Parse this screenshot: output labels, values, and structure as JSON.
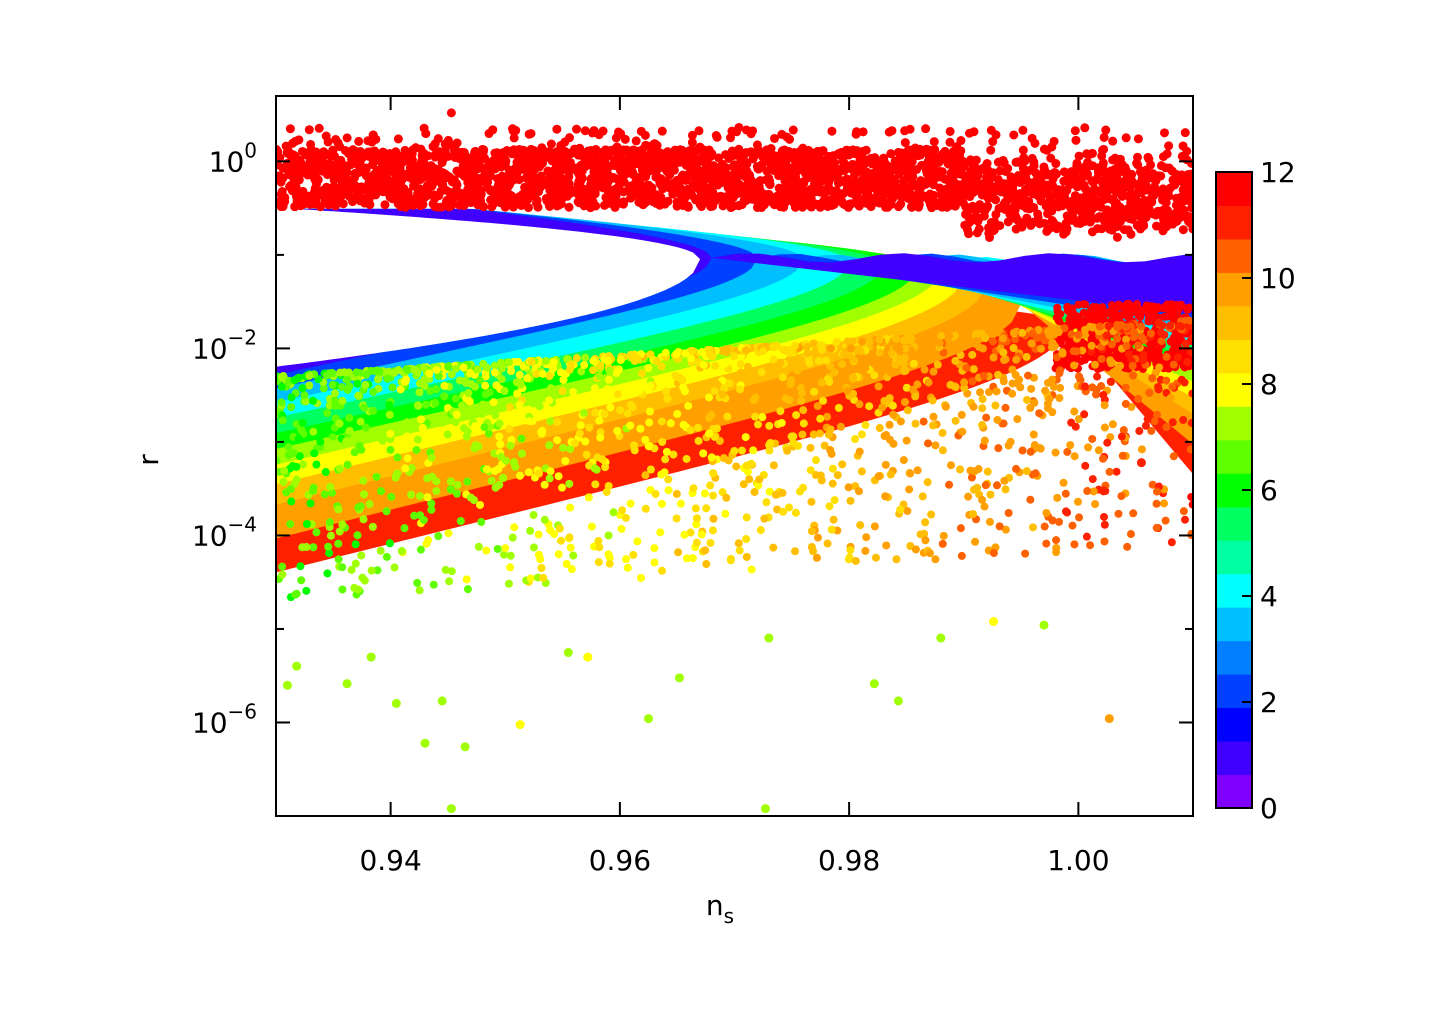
{
  "chart_data": {
    "type": "scatter",
    "title": "",
    "xlabel_main": "n",
    "xlabel_sub": "s",
    "ylabel": "r",
    "xlim": [
      0.93,
      1.01
    ],
    "ylim": [
      1e-07,
      5
    ],
    "yscale": "log",
    "x_ticks": [
      {
        "value": 0.94,
        "label": "0.94"
      },
      {
        "value": 0.96,
        "label": "0.96"
      },
      {
        "value": 0.98,
        "label": "0.98"
      },
      {
        "value": 1.0,
        "label": "1.00"
      }
    ],
    "y_ticks": [
      {
        "value": 1,
        "base": "10",
        "exp": "0"
      },
      {
        "value": 0.01,
        "base": "10",
        "exp": "−2"
      },
      {
        "value": 0.0001,
        "base": "10",
        "exp": "−4"
      },
      {
        "value": 1e-06,
        "base": "10",
        "exp": "−6"
      }
    ],
    "y_minor_ticks": [
      10,
      0.1,
      0.001,
      1e-05
    ],
    "colorbar": {
      "min": 0,
      "max": 12,
      "ticks": [
        "0",
        "2",
        "4",
        "6",
        "8",
        "10",
        "12"
      ],
      "colors": [
        "#7f00ff",
        "#3f00ff",
        "#0000ff",
        "#0040ff",
        "#0080ff",
        "#00bfff",
        "#00ffff",
        "#00ffa0",
        "#00ff60",
        "#00ff00",
        "#60ff00",
        "#a0ff00",
        "#ffff00",
        "#ffdf00",
        "#ffbf00",
        "#ff9f00",
        "#ff6000",
        "#ff2000",
        "#ff0000"
      ]
    },
    "bands": [
      {
        "level": 12,
        "color": "#ff1a00",
        "ns_upper": [
          [
            0.93,
            0.32
          ],
          [
            0.96,
            0.3
          ],
          [
            0.99,
            0.25
          ],
          [
            1.01,
            0.2
          ]
        ],
        "r_upper": [
          [
            0.93,
            1.0
          ],
          [
            1.01,
            1.0
          ]
        ]
      },
      {
        "level": 0.5,
        "color": "#8000ff",
        "curve": [
          [
            0.945,
            0.28
          ],
          [
            0.955,
            0.25
          ],
          [
            0.962,
            0.19
          ],
          [
            0.967,
            0.11
          ],
          [
            0.97,
            0.085
          ],
          [
            0.972,
            0.07
          ]
        ]
      },
      {
        "level": 2,
        "color": "#1a1aff",
        "curve": [
          [
            0.93,
            0.0065
          ],
          [
            0.95,
            0.015
          ],
          [
            0.965,
            0.03
          ],
          [
            0.98,
            0.06
          ],
          [
            0.988,
            0.09
          ]
        ]
      },
      {
        "level": 4,
        "color": "#00d0ff",
        "curve": [
          [
            0.93,
            0.003
          ],
          [
            0.95,
            0.0075
          ],
          [
            0.97,
            0.02
          ],
          [
            0.99,
            0.07
          ]
        ]
      },
      {
        "level": 6,
        "color": "#00ff80",
        "curve": [
          [
            0.93,
            0.0015
          ],
          [
            0.95,
            0.004
          ],
          [
            0.97,
            0.012
          ],
          [
            1.01,
            0.05
          ]
        ]
      },
      {
        "level": 8,
        "color": "#40ff00",
        "curve": [
          [
            0.93,
            0.0008
          ],
          [
            0.96,
            0.003
          ],
          [
            0.98,
            0.008
          ],
          [
            1.01,
            0.03
          ]
        ]
      },
      {
        "level": 10,
        "color": "#e6ff00",
        "curve": [
          [
            0.98,
            0.01
          ],
          [
            1.0,
            0.008
          ],
          [
            1.01,
            0.015
          ]
        ]
      }
    ],
    "sparse_points": [
      {
        "x": 0.9453,
        "y": 3.3,
        "level": 12
      },
      {
        "x": 0.932,
        "y": 1.7,
        "level": 12
      },
      {
        "x": 0.9905,
        "y": 2.0,
        "level": 12
      },
      {
        "x": 0.9785,
        "y": 2.1,
        "level": 12
      },
      {
        "x": 0.9453,
        "y": 1.2e-07,
        "level": 7
      },
      {
        "x": 0.9727,
        "y": 1.2e-07,
        "level": 7
      },
      {
        "x": 0.9465,
        "y": 5.5e-07,
        "level": 7
      },
      {
        "x": 0.943,
        "y": 6e-07,
        "level": 7
      },
      {
        "x": 1.0027,
        "y": 1.1e-06,
        "level": 10
      },
      {
        "x": 0.9405,
        "y": 1.6e-06,
        "level": 7
      },
      {
        "x": 0.9445,
        "y": 1.7e-06,
        "level": 7
      },
      {
        "x": 0.9625,
        "y": 1.1e-06,
        "level": 7
      },
      {
        "x": 0.9513,
        "y": 9.5e-07,
        "level": 8
      },
      {
        "x": 0.9843,
        "y": 1.7e-06,
        "level": 7
      },
      {
        "x": 0.9822,
        "y": 2.6e-06,
        "level": 7
      },
      {
        "x": 0.9652,
        "y": 3e-06,
        "level": 7
      },
      {
        "x": 0.973,
        "y": 8e-06,
        "level": 7
      },
      {
        "x": 0.988,
        "y": 8e-06,
        "level": 7
      },
      {
        "x": 0.997,
        "y": 1.1e-05,
        "level": 7
      },
      {
        "x": 0.9926,
        "y": 1.2e-05,
        "level": 8
      },
      {
        "x": 0.9572,
        "y": 5e-06,
        "level": 8
      },
      {
        "x": 0.9555,
        "y": 5.6e-06,
        "level": 7
      },
      {
        "x": 0.9383,
        "y": 5e-06,
        "level": 7
      },
      {
        "x": 0.9318,
        "y": 4e-06,
        "level": 7
      },
      {
        "x": 0.9362,
        "y": 2.6e-06,
        "level": 7
      },
      {
        "x": 0.931,
        "y": 2.5e-06,
        "level": 7
      },
      {
        "x": 1.0022,
        "y": 0.0003,
        "level": 11
      },
      {
        "x": 1.0055,
        "y": 0.0006,
        "level": 11
      },
      {
        "x": 1.0085,
        "y": 0.001,
        "level": 11
      }
    ]
  }
}
